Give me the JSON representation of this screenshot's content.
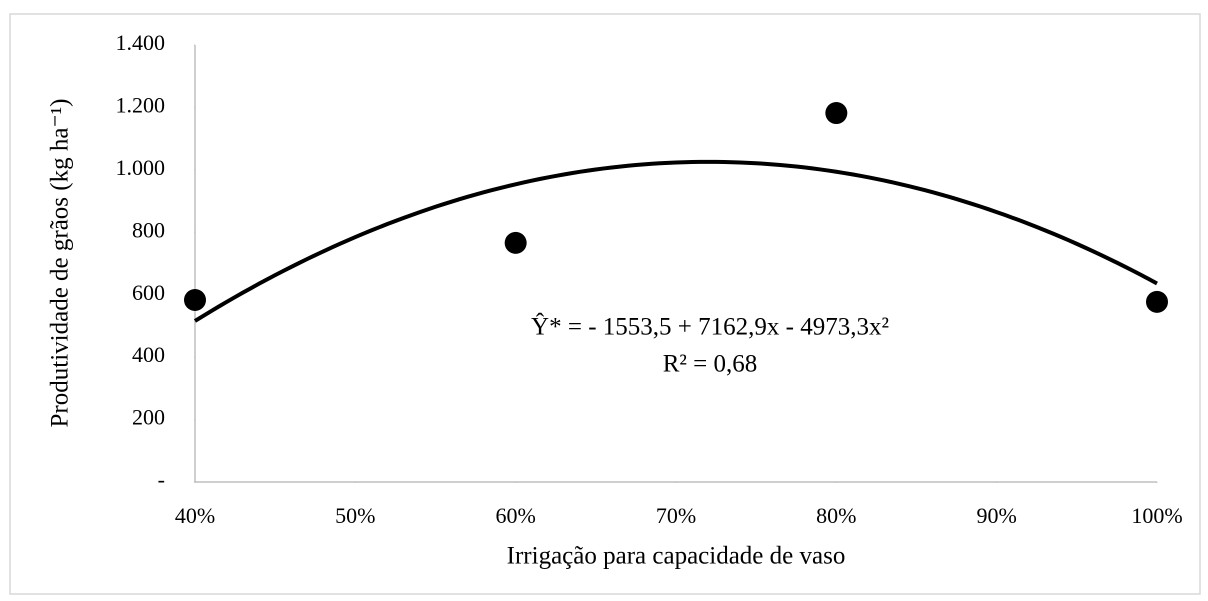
{
  "chart_data": {
    "type": "scatter",
    "x_label": "Irrigação para capacidade de vaso",
    "y_label": "Produtividade de grãos (kg ha⁻¹)",
    "annotations": [
      "Ŷ* = - 1553,5 + 7162,9x - 4973,3x²",
      "R² = 0,68"
    ],
    "x": [
      0.4,
      0.6,
      0.8,
      1.0
    ],
    "values": [
      583,
      766,
      1182,
      577
    ],
    "color": "#000000",
    "trendline": {
      "type": "polynomial",
      "coefficients": [
        -1553.5,
        7162.9,
        -4973.3
      ],
      "color": "#000000"
    },
    "xlim": [
      0.4,
      1.0
    ],
    "xticks": [
      {
        "value": 0.4,
        "label": "40%"
      },
      {
        "value": 0.5,
        "label": "50%"
      },
      {
        "value": 0.6,
        "label": "60%"
      },
      {
        "value": 0.7,
        "label": "70%"
      },
      {
        "value": 0.8,
        "label": "80%"
      },
      {
        "value": 0.9,
        "label": "90%"
      },
      {
        "value": 1.0,
        "label": "100%"
      }
    ],
    "ylim": [
      0,
      1400
    ],
    "yticks": [
      {
        "value": 0,
        "label": "-"
      },
      200,
      400,
      600,
      800,
      {
        "value": 1000,
        "label": "1.000"
      },
      {
        "value": 1200,
        "label": "1.200"
      },
      {
        "value": 1400,
        "label": "1.400"
      }
    ],
    "grid": false
  }
}
